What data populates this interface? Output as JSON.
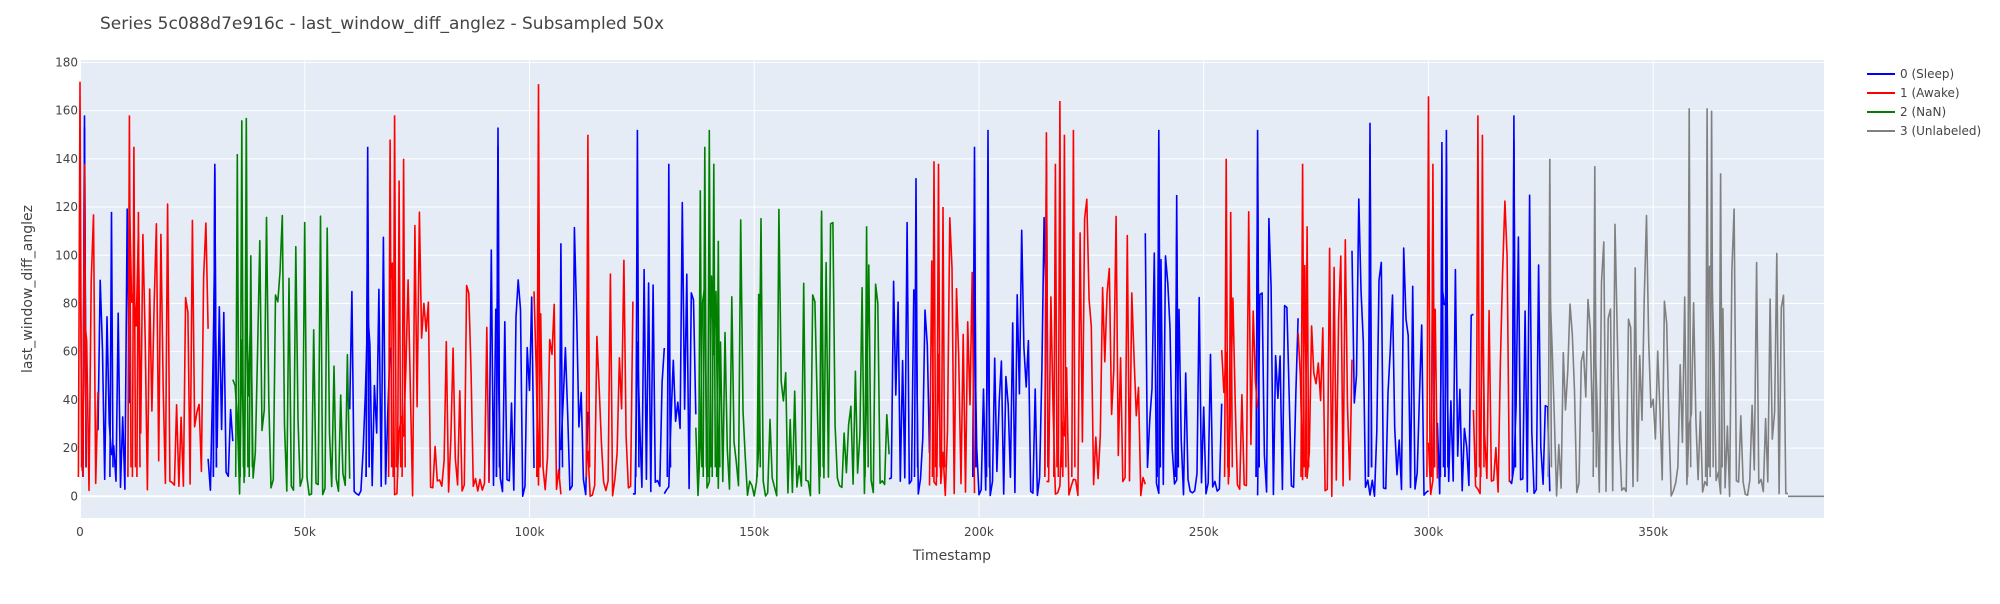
{
  "chart_data": {
    "type": "line",
    "title": "Series 5c088d7e916c - last_window_diff_anglez - Subsampled 50x",
    "xlabel": "Timestamp",
    "ylabel": "last_window_diff_anglez",
    "xlim": [
      0,
      388000
    ],
    "ylim": [
      -9,
      181
    ],
    "x_ticks": [
      0,
      50000,
      100000,
      150000,
      200000,
      250000,
      300000,
      350000
    ],
    "x_tick_labels": [
      "0",
      "50k",
      "100k",
      "150k",
      "200k",
      "250k",
      "300k",
      "350k"
    ],
    "y_ticks": [
      0,
      20,
      40,
      60,
      80,
      100,
      120,
      140,
      160,
      180
    ],
    "y_tick_labels": [
      "0",
      "20",
      "40",
      "60",
      "80",
      "100",
      "120",
      "140",
      "160",
      "180"
    ],
    "grid": true,
    "legend_position": "top-right",
    "series": [
      {
        "name": "0 (Sleep)",
        "color": "#0000ff",
        "segments": [
          [
            4000,
            11000
          ],
          [
            28500,
            34000
          ],
          [
            60000,
            69000
          ],
          [
            91000,
            101000
          ],
          [
            107000,
            113000
          ],
          [
            123000,
            130000
          ],
          [
            130000,
            137000
          ],
          [
            180000,
            189000
          ],
          [
            199000,
            215000
          ],
          [
            237000,
            254000
          ],
          [
            262000,
            271000
          ],
          [
            283000,
            300000
          ],
          [
            302000,
            310000
          ],
          [
            318000,
            327000
          ]
        ],
        "peaks": [
          [
            1,
            153
          ],
          [
            1,
            158
          ],
          [
            7,
            118
          ],
          [
            30,
            136
          ],
          [
            30,
            138
          ],
          [
            64,
            145
          ],
          [
            64,
            120
          ],
          [
            93,
            153
          ],
          [
            93,
            145
          ],
          [
            107,
            105
          ],
          [
            124,
            152
          ],
          [
            131,
            138
          ],
          [
            131,
            108
          ],
          [
            186,
            132
          ],
          [
            199,
            132
          ],
          [
            199,
            145
          ],
          [
            202,
            152
          ],
          [
            202,
            125
          ],
          [
            215,
            139
          ],
          [
            240,
            145
          ],
          [
            240,
            152
          ],
          [
            244,
            125
          ],
          [
            244,
            109
          ],
          [
            262,
            136
          ],
          [
            262,
            152
          ],
          [
            287,
            146
          ],
          [
            287,
            155
          ],
          [
            301,
            120
          ],
          [
            303,
            147
          ],
          [
            304,
            138
          ],
          [
            304,
            152
          ],
          [
            319,
            148
          ],
          [
            319,
            158
          ]
        ]
      },
      {
        "name": "1 (Awake)",
        "color": "#ff0000",
        "segments": [
          [
            0,
            4000
          ],
          [
            11000,
            28500
          ],
          [
            69000,
            91000
          ],
          [
            101000,
            107000
          ],
          [
            113000,
            123000
          ],
          [
            189000,
            199000
          ],
          [
            215000,
            237000
          ],
          [
            254000,
            262000
          ],
          [
            271000,
            283000
          ],
          [
            300000,
            302000
          ],
          [
            310000,
            318000
          ]
        ],
        "peaks": [
          [
            0,
            172
          ],
          [
            1,
            138
          ],
          [
            11,
            158
          ],
          [
            12,
            145
          ],
          [
            13,
            118
          ],
          [
            69,
            148
          ],
          [
            70,
            158
          ],
          [
            71,
            131
          ],
          [
            72,
            140
          ],
          [
            102,
            171
          ],
          [
            102,
            140
          ],
          [
            113,
            128
          ],
          [
            113,
            150
          ],
          [
            190,
            139
          ],
          [
            191,
            138
          ],
          [
            192,
            120
          ],
          [
            215,
            151
          ],
          [
            217,
            138
          ],
          [
            218,
            164
          ],
          [
            219,
            150
          ],
          [
            221,
            152
          ],
          [
            255,
            140
          ],
          [
            256,
            118
          ],
          [
            272,
            138
          ],
          [
            273,
            112
          ],
          [
            300,
            166
          ],
          [
            301,
            138
          ],
          [
            311,
            158
          ],
          [
            312,
            150
          ]
        ]
      },
      {
        "name": "2 (NaN)",
        "color": "#008000",
        "segments": [
          [
            34000,
            60000
          ],
          [
            137000,
            180000
          ]
        ],
        "peaks": [
          [
            35,
            142
          ],
          [
            36,
            156
          ],
          [
            37,
            157
          ],
          [
            38,
            100
          ],
          [
            138,
            127
          ],
          [
            139,
            145
          ],
          [
            140,
            152
          ],
          [
            141,
            138
          ],
          [
            142,
            106
          ],
          [
            151,
            84
          ],
          [
            165,
            116
          ],
          [
            175,
            112
          ]
        ]
      },
      {
        "name": "3 (Unlabeled)",
        "color": "#808080",
        "segments": [
          [
            327000,
            380000
          ],
          [
            380000,
            388000
          ]
        ],
        "peaks": [
          [
            327,
            140
          ],
          [
            337,
            137
          ],
          [
            358,
            161
          ],
          [
            362,
            161
          ],
          [
            363,
            160
          ],
          [
            365,
            134
          ]
        ]
      }
    ]
  }
}
